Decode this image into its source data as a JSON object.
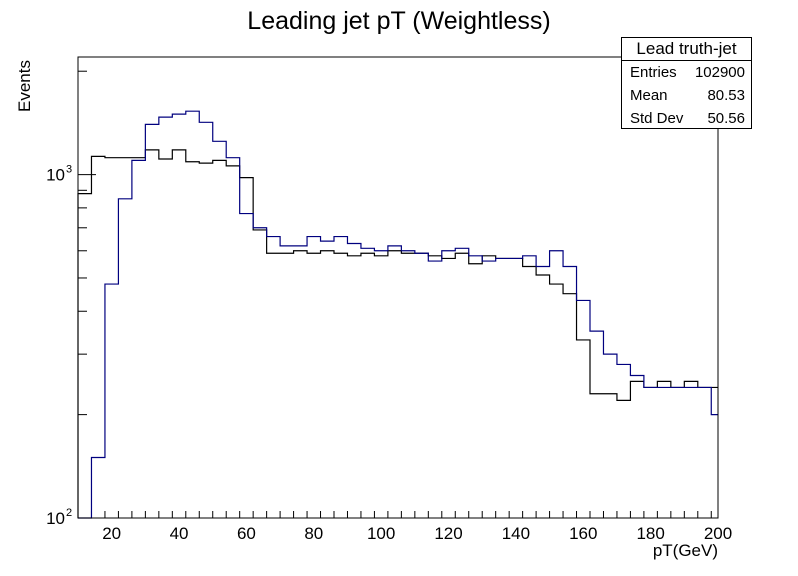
{
  "chart_data": {
    "type": "line",
    "title": "Leading jet pT (Weightless)",
    "xlabel": "pT(GeV)",
    "ylabel": "Events",
    "xlim": [
      10,
      200
    ],
    "ylim": [
      100,
      2200
    ],
    "log_y": true,
    "grid": false,
    "x_ticks": [
      20,
      40,
      60,
      80,
      100,
      120,
      140,
      160,
      180,
      200
    ],
    "y_ticks": [
      {
        "value": 100,
        "base": "10",
        "exp": "2"
      },
      {
        "value": 1000,
        "base": "10",
        "exp": "3"
      }
    ],
    "bin_edges": [
      10,
      14,
      18,
      22,
      26,
      30,
      34,
      38,
      42,
      46,
      50,
      54,
      58,
      62,
      66,
      70,
      74,
      78,
      82,
      86,
      90,
      94,
      98,
      102,
      106,
      110,
      114,
      118,
      122,
      126,
      130,
      134,
      138,
      142,
      146,
      150,
      154,
      158,
      162,
      166,
      170,
      174,
      178,
      182,
      186,
      190,
      194,
      198,
      200
    ],
    "series": [
      {
        "color": "#000000",
        "values": [
          880,
          1130,
          1120,
          1120,
          1120,
          1180,
          1110,
          1180,
          1090,
          1080,
          1100,
          1060,
          980,
          690,
          590,
          590,
          600,
          590,
          600,
          590,
          580,
          590,
          580,
          600,
          590,
          590,
          580,
          570,
          590,
          550,
          580,
          570,
          570,
          540,
          510,
          480,
          450,
          330,
          230,
          230,
          220,
          250,
          240,
          250,
          240,
          250,
          240,
          240
        ]
      },
      {
        "color": "#00007f",
        "values": [
          80,
          150,
          480,
          850,
          1100,
          1400,
          1470,
          1500,
          1530,
          1420,
          1250,
          1120,
          770,
          700,
          660,
          620,
          620,
          660,
          640,
          660,
          630,
          610,
          600,
          620,
          600,
          590,
          560,
          600,
          610,
          580,
          560,
          570,
          570,
          580,
          540,
          600,
          540,
          430,
          350,
          300,
          280,
          260,
          240,
          240,
          240,
          240,
          240,
          200
        ]
      }
    ]
  },
  "stats_box": {
    "title": "Lead truth-jet",
    "rows": [
      {
        "label": "Entries",
        "value": "102900"
      },
      {
        "label": "Mean",
        "value": "80.53"
      },
      {
        "label": "Std Dev",
        "value": "50.56"
      }
    ]
  }
}
